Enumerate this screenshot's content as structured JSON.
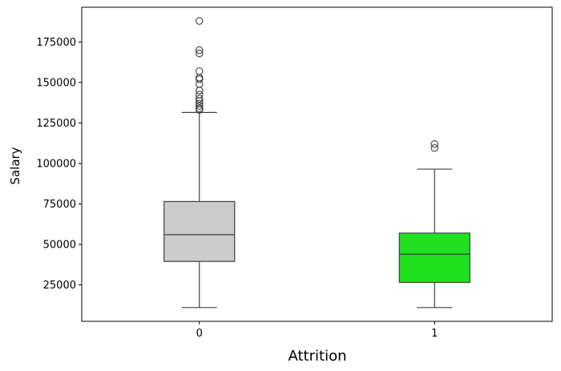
{
  "chart_data": {
    "type": "box",
    "xlabel": "Attrition",
    "ylabel": "Salary",
    "ylim": [
      2500,
      196500
    ],
    "yticks": [
      25000,
      50000,
      75000,
      100000,
      125000,
      150000,
      175000
    ],
    "ytick_labels": [
      "25000",
      "50000",
      "75000",
      "100000",
      "125000",
      "150000",
      "175000"
    ],
    "grid": false,
    "categories": [
      "0",
      "1"
    ],
    "boxes": [
      {
        "category": "0",
        "color": "#cccccc",
        "whisker_low": 11000,
        "q1": 39500,
        "median": 56000,
        "q3": 76500,
        "whisker_high": 131500,
        "outliers": [
          133000,
          134000,
          135500,
          137000,
          138500,
          140000,
          142500,
          145000,
          149000,
          152000,
          153000,
          157000,
          168000,
          170000,
          188000
        ]
      },
      {
        "category": "1",
        "color": "#1fe11f",
        "whisker_low": 11000,
        "q1": 26500,
        "median": 44000,
        "q3": 57000,
        "whisker_high": 96500,
        "outliers": [
          109500,
          112000
        ]
      }
    ]
  }
}
